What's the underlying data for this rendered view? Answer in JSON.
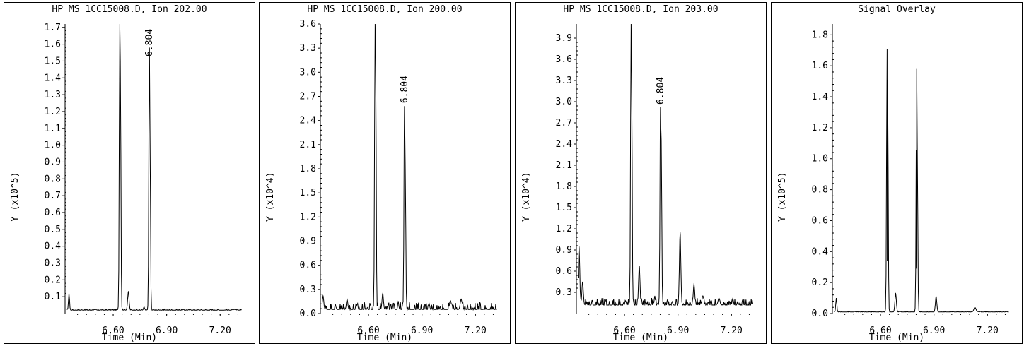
{
  "chart_data": [
    {
      "type": "line",
      "title": "HP MS 1CC15008.D, Ion 202.00",
      "xlabel": "Time (Min)",
      "ylabel": "Y (x10^5)",
      "xlim": [
        6.33,
        7.33
      ],
      "ylim": [
        0.0,
        1.72
      ],
      "xticks": [
        6.6,
        6.9,
        7.2
      ],
      "xtick_labels": [
        "6.60",
        "6.90",
        "7.20"
      ],
      "yticks": [
        0.1,
        0.2,
        0.3,
        0.4,
        0.5,
        0.6,
        0.7,
        0.8,
        0.9,
        1.0,
        1.1,
        1.2,
        1.3,
        1.4,
        1.5,
        1.6,
        1.7
      ],
      "ytick_labels": [
        "0.1",
        "0.2",
        "0.3",
        "0.4",
        "0.5",
        "0.6",
        "0.7",
        "0.8",
        "0.9",
        "1.0",
        "1.1",
        "1.2",
        "1.3",
        "1.4",
        "1.5",
        "1.6",
        "1.7"
      ],
      "baseline": 0.02,
      "noise": 0.006,
      "peaks": [
        {
          "x": 6.352,
          "y": 0.12,
          "w": 0.003
        },
        {
          "x": 6.637,
          "y": 1.72,
          "w": 0.003
        },
        {
          "x": 6.64,
          "y": 1.5,
          "w": 0.003
        },
        {
          "x": 6.685,
          "y": 0.13,
          "w": 0.004
        },
        {
          "x": 6.773,
          "y": 0.04,
          "w": 0.003
        },
        {
          "x": 6.803,
          "y": 1.58,
          "w": 0.003
        },
        {
          "x": 6.806,
          "y": 1.12,
          "w": 0.003
        }
      ],
      "peak_labels": [
        {
          "x": 6.803,
          "text": "6.804"
        }
      ]
    },
    {
      "type": "line",
      "title": "HP MS 1CC15008.D, Ion 200.00",
      "xlabel": "Time (Min)",
      "ylabel": "Y (x10^4)",
      "xlim": [
        6.33,
        7.33
      ],
      "ylim": [
        0.0,
        3.6
      ],
      "xticks": [
        6.6,
        6.9,
        7.2
      ],
      "xtick_labels": [
        "6.60",
        "6.90",
        "7.20"
      ],
      "yticks": [
        0.0,
        0.3,
        0.6,
        0.9,
        1.2,
        1.5,
        1.8,
        2.1,
        2.4,
        2.7,
        3.0,
        3.3,
        3.6
      ],
      "ytick_labels": [
        "0.0",
        "0.3",
        "0.6",
        "0.9",
        "1.2",
        "1.5",
        "1.8",
        "2.1",
        "2.4",
        "2.7",
        "3.0",
        "3.3",
        "3.6"
      ],
      "baseline": 0.05,
      "noise": 0.09,
      "peaks": [
        {
          "x": 6.345,
          "y": 0.22,
          "w": 0.004
        },
        {
          "x": 6.48,
          "y": 0.18,
          "w": 0.004
        },
        {
          "x": 6.637,
          "y": 3.6,
          "w": 0.003
        },
        {
          "x": 6.64,
          "y": 3.28,
          "w": 0.003
        },
        {
          "x": 6.68,
          "y": 0.25,
          "w": 0.004
        },
        {
          "x": 6.767,
          "y": 0.15,
          "w": 0.003
        },
        {
          "x": 6.802,
          "y": 2.58,
          "w": 0.003
        },
        {
          "x": 6.806,
          "y": 1.85,
          "w": 0.003
        },
        {
          "x": 7.06,
          "y": 0.16,
          "w": 0.005
        },
        {
          "x": 7.12,
          "y": 0.18,
          "w": 0.005
        }
      ],
      "peak_labels": [
        {
          "x": 6.802,
          "text": "6.804"
        }
      ]
    },
    {
      "type": "line",
      "title": "HP MS 1CC15008.D, Ion 203.00",
      "xlabel": "Time (Min)",
      "ylabel": "Y (x10^4)",
      "xlim": [
        6.33,
        7.33
      ],
      "ylim": [
        0.0,
        4.1
      ],
      "xticks": [
        6.6,
        6.9,
        7.2
      ],
      "xtick_labels": [
        "6.60",
        "6.90",
        "7.20"
      ],
      "yticks": [
        0.3,
        0.6,
        0.9,
        1.2,
        1.5,
        1.8,
        2.1,
        2.4,
        2.7,
        3.0,
        3.3,
        3.6,
        3.9
      ],
      "ytick_labels": [
        "0.3",
        "0.6",
        "0.9",
        "1.2",
        "1.5",
        "1.8",
        "2.1",
        "2.4",
        "2.7",
        "3.0",
        "3.3",
        "3.6",
        "3.9"
      ],
      "baseline": 0.12,
      "noise": 0.1,
      "peaks": [
        {
          "x": 6.345,
          "y": 0.95,
          "w": 0.004
        },
        {
          "x": 6.365,
          "y": 0.45,
          "w": 0.004
        },
        {
          "x": 6.637,
          "y": 4.1,
          "w": 0.003
        },
        {
          "x": 6.64,
          "y": 3.4,
          "w": 0.003
        },
        {
          "x": 6.683,
          "y": 0.68,
          "w": 0.004
        },
        {
          "x": 6.77,
          "y": 0.25,
          "w": 0.003
        },
        {
          "x": 6.802,
          "y": 2.92,
          "w": 0.003
        },
        {
          "x": 6.806,
          "y": 2.45,
          "w": 0.003
        },
        {
          "x": 6.912,
          "y": 1.15,
          "w": 0.004
        },
        {
          "x": 6.99,
          "y": 0.42,
          "w": 0.004
        },
        {
          "x": 7.04,
          "y": 0.25,
          "w": 0.005
        },
        {
          "x": 7.13,
          "y": 0.22,
          "w": 0.005
        }
      ],
      "peak_labels": [
        {
          "x": 6.802,
          "text": "6.804"
        }
      ]
    },
    {
      "type": "line",
      "title": "Signal Overlay",
      "xlabel": "Time (Min)",
      "ylabel": "Y (x10^5)",
      "xlim": [
        6.33,
        7.33
      ],
      "ylim": [
        0.0,
        1.87
      ],
      "xticks": [
        6.6,
        6.9,
        7.2
      ],
      "xtick_labels": [
        "6.60",
        "6.90",
        "7.20"
      ],
      "yticks": [
        0.0,
        0.2,
        0.4,
        0.6,
        0.8,
        1.0,
        1.2,
        1.4,
        1.6,
        1.8
      ],
      "ytick_labels": [
        "0.0",
        "0.2",
        "0.4",
        "0.6",
        "0.8",
        "1.0",
        "1.2",
        "1.4",
        "1.6",
        "1.8"
      ],
      "baseline": 0.01,
      "noise": 0.004,
      "peaks": [
        {
          "x": 6.352,
          "y": 0.1,
          "w": 0.003
        },
        {
          "x": 6.637,
          "y": 1.71,
          "w": 0.003
        },
        {
          "x": 6.64,
          "y": 1.51,
          "w": 0.003
        },
        {
          "x": 6.638,
          "y": 0.34,
          "w": 0.003
        },
        {
          "x": 6.685,
          "y": 0.13,
          "w": 0.004
        },
        {
          "x": 6.803,
          "y": 1.58,
          "w": 0.003
        },
        {
          "x": 6.806,
          "y": 1.12,
          "w": 0.003
        },
        {
          "x": 6.802,
          "y": 0.29,
          "w": 0.003
        },
        {
          "x": 6.912,
          "y": 0.11,
          "w": 0.004
        },
        {
          "x": 7.13,
          "y": 0.04,
          "w": 0.006
        }
      ],
      "peak_labels": []
    }
  ]
}
